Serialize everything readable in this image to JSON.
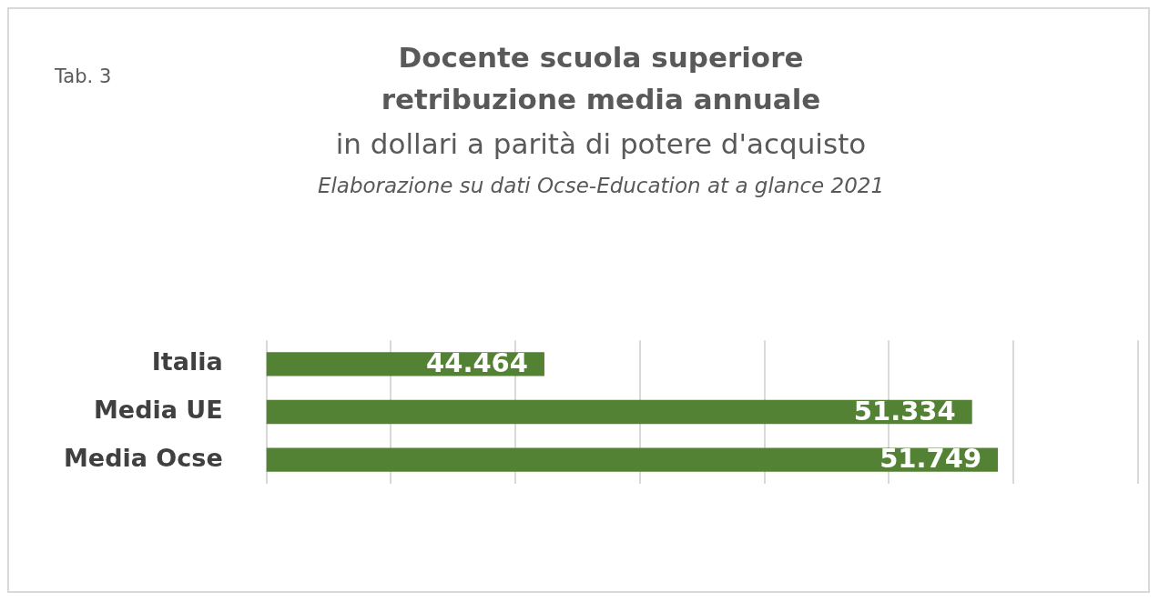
{
  "chart_data": {
    "type": "bar",
    "orientation": "horizontal",
    "title": "Docente scuola superiore\nretribuzione media annuale",
    "subtitle": "in dollari a parità di potere d'acquisto",
    "annotations": [
      "Tab. 3",
      "Elaborazione su dati Ocse-Education at a glance 2021"
    ],
    "categories": [
      "Italia",
      "Media UE",
      "Media Ocse"
    ],
    "values": [
      44464,
      51334,
      51749
    ],
    "value_labels": [
      "44.464",
      "51.334",
      "51.749"
    ],
    "color": "#548235",
    "xlim": [
      40000,
      54000
    ],
    "xticks": [
      {
        "value": 40000,
        "label": null
      },
      {
        "value": 42000,
        "label": null
      },
      {
        "value": 44000,
        "label": null
      },
      {
        "value": 46000,
        "label": null
      },
      {
        "value": 48000,
        "label": null
      },
      {
        "value": 50000,
        "label": null
      },
      {
        "value": 52000,
        "label": null
      },
      {
        "value": 54000,
        "label": null
      }
    ],
    "tick_labels": "y",
    "grid": "x",
    "legend": false
  }
}
